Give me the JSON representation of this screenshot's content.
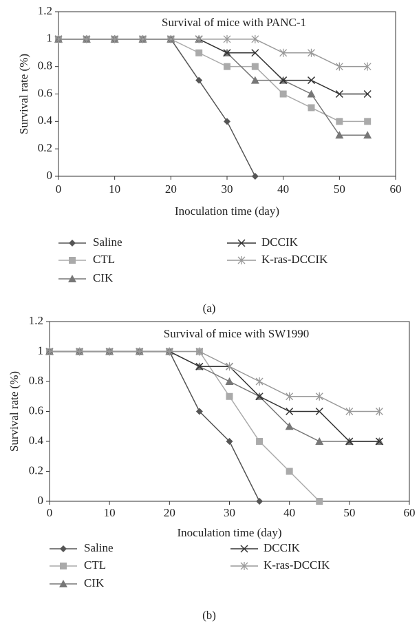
{
  "chart_data": [
    {
      "type": "line",
      "title": "Survival of mice with PANC-1",
      "x_label": "Inoculation time (day)",
      "y_label": "Survival rate (%)",
      "caption": "(a)",
      "x": [
        0,
        5,
        10,
        15,
        20,
        25,
        30,
        35,
        40,
        45,
        50,
        55
      ],
      "xlim": [
        0,
        60
      ],
      "xticks": [
        0,
        10,
        20,
        30,
        40,
        50,
        60
      ],
      "ylim": [
        0,
        1.2
      ],
      "yticks": [
        0,
        0.2,
        0.4,
        0.6,
        0.8,
        1,
        1.2
      ],
      "series": [
        {
          "name": "Saline",
          "color": "#555555",
          "marker": "diamond",
          "values": [
            1,
            1,
            1,
            1,
            1,
            0.7,
            0.4,
            0,
            null,
            null,
            null,
            null
          ]
        },
        {
          "name": "CTL",
          "color": "#aaaaaa",
          "marker": "square",
          "values": [
            1,
            1,
            1,
            1,
            1,
            0.9,
            0.8,
            0.8,
            0.6,
            0.5,
            0.4,
            0.4
          ]
        },
        {
          "name": "CIK",
          "color": "#777777",
          "marker": "triangle",
          "values": [
            1,
            1,
            1,
            1,
            1,
            1,
            0.9,
            0.7,
            0.7,
            0.6,
            0.3,
            0.3
          ]
        },
        {
          "name": "DCCIK",
          "color": "#333333",
          "marker": "x",
          "values": [
            1,
            1,
            1,
            1,
            1,
            1,
            0.9,
            0.9,
            0.7,
            0.7,
            0.6,
            0.6
          ]
        },
        {
          "name": "K-ras-DCCIK",
          "color": "#999999",
          "marker": "star",
          "values": [
            1,
            1,
            1,
            1,
            1,
            1,
            1,
            1,
            0.9,
            0.9,
            0.8,
            0.8
          ]
        }
      ]
    },
    {
      "type": "line",
      "title": "Survival of mice with SW1990",
      "x_label": "Inoculation time (day)",
      "y_label": "Survival rate (%)",
      "caption": "(b)",
      "x": [
        0,
        5,
        10,
        15,
        20,
        25,
        30,
        35,
        40,
        45,
        50,
        55
      ],
      "xlim": [
        0,
        60
      ],
      "xticks": [
        0,
        10,
        20,
        30,
        40,
        50,
        60
      ],
      "ylim": [
        0,
        1.2
      ],
      "yticks": [
        0,
        0.2,
        0.4,
        0.6,
        0.8,
        1,
        1.2
      ],
      "series": [
        {
          "name": "Saline",
          "color": "#555555",
          "marker": "diamond",
          "values": [
            1,
            1,
            1,
            1,
            1,
            0.6,
            0.4,
            0,
            null,
            null,
            null,
            null
          ]
        },
        {
          "name": "CTL",
          "color": "#aaaaaa",
          "marker": "square",
          "values": [
            1,
            1,
            1,
            1,
            1,
            1,
            0.7,
            0.4,
            0.2,
            0,
            null,
            null
          ]
        },
        {
          "name": "CIK",
          "color": "#777777",
          "marker": "triangle",
          "values": [
            1,
            1,
            1,
            1,
            1,
            0.9,
            0.8,
            0.7,
            0.5,
            0.4,
            0.4,
            0.4
          ]
        },
        {
          "name": "DCCIK",
          "color": "#333333",
          "marker": "x",
          "values": [
            1,
            1,
            1,
            1,
            1,
            0.9,
            0.9,
            0.7,
            0.6,
            0.6,
            0.4,
            0.4
          ]
        },
        {
          "name": "K-ras-DCCIK",
          "color": "#999999",
          "marker": "star",
          "values": [
            1,
            1,
            1,
            1,
            1,
            1,
            0.9,
            0.8,
            0.7,
            0.7,
            0.6,
            0.6
          ]
        }
      ]
    }
  ]
}
